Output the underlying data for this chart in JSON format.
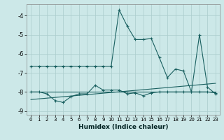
{
  "xlabel": "Humidex (Indice chaleur)",
  "x": [
    0,
    1,
    2,
    3,
    4,
    5,
    6,
    7,
    8,
    9,
    10,
    11,
    12,
    13,
    14,
    15,
    16,
    17,
    18,
    19,
    20,
    21,
    22,
    23
  ],
  "line1": [
    -6.65,
    -6.65,
    -6.65,
    -6.65,
    -6.65,
    -6.65,
    -6.65,
    -6.65,
    -6.65,
    -6.65,
    -6.65,
    -3.7,
    -4.55,
    -5.25,
    -5.25,
    -5.2,
    -6.2,
    -7.25,
    -6.8,
    -6.9,
    -8.0,
    -5.0,
    -7.75,
    -8.1
  ],
  "line2": [
    -8.0,
    -8.0,
    -8.1,
    -8.45,
    -8.55,
    -8.25,
    -8.1,
    -8.1,
    -7.65,
    -7.9,
    -7.9,
    -7.9,
    -8.1,
    -8.05,
    -8.2,
    -8.05,
    -8.0,
    -8.0,
    -8.0,
    -8.0,
    -8.0,
    -8.0,
    -8.0,
    -8.05
  ],
  "line3_x": [
    0,
    23
  ],
  "line3_y": [
    -8.0,
    -8.0
  ],
  "line4_x": [
    0,
    23
  ],
  "line4_y": [
    -8.4,
    -7.55
  ],
  "ylim": [
    -9.2,
    -3.4
  ],
  "xlim": [
    -0.5,
    23.5
  ],
  "yticks": [
    -9,
    -8,
    -7,
    -6,
    -5,
    -4
  ],
  "xticks": [
    0,
    1,
    2,
    3,
    4,
    5,
    6,
    7,
    8,
    9,
    10,
    11,
    12,
    13,
    14,
    15,
    16,
    17,
    18,
    19,
    20,
    21,
    22,
    23
  ],
  "line_color": "#1a6060",
  "bg_color": "#cce8e8",
  "grid_color": "#aacccc"
}
